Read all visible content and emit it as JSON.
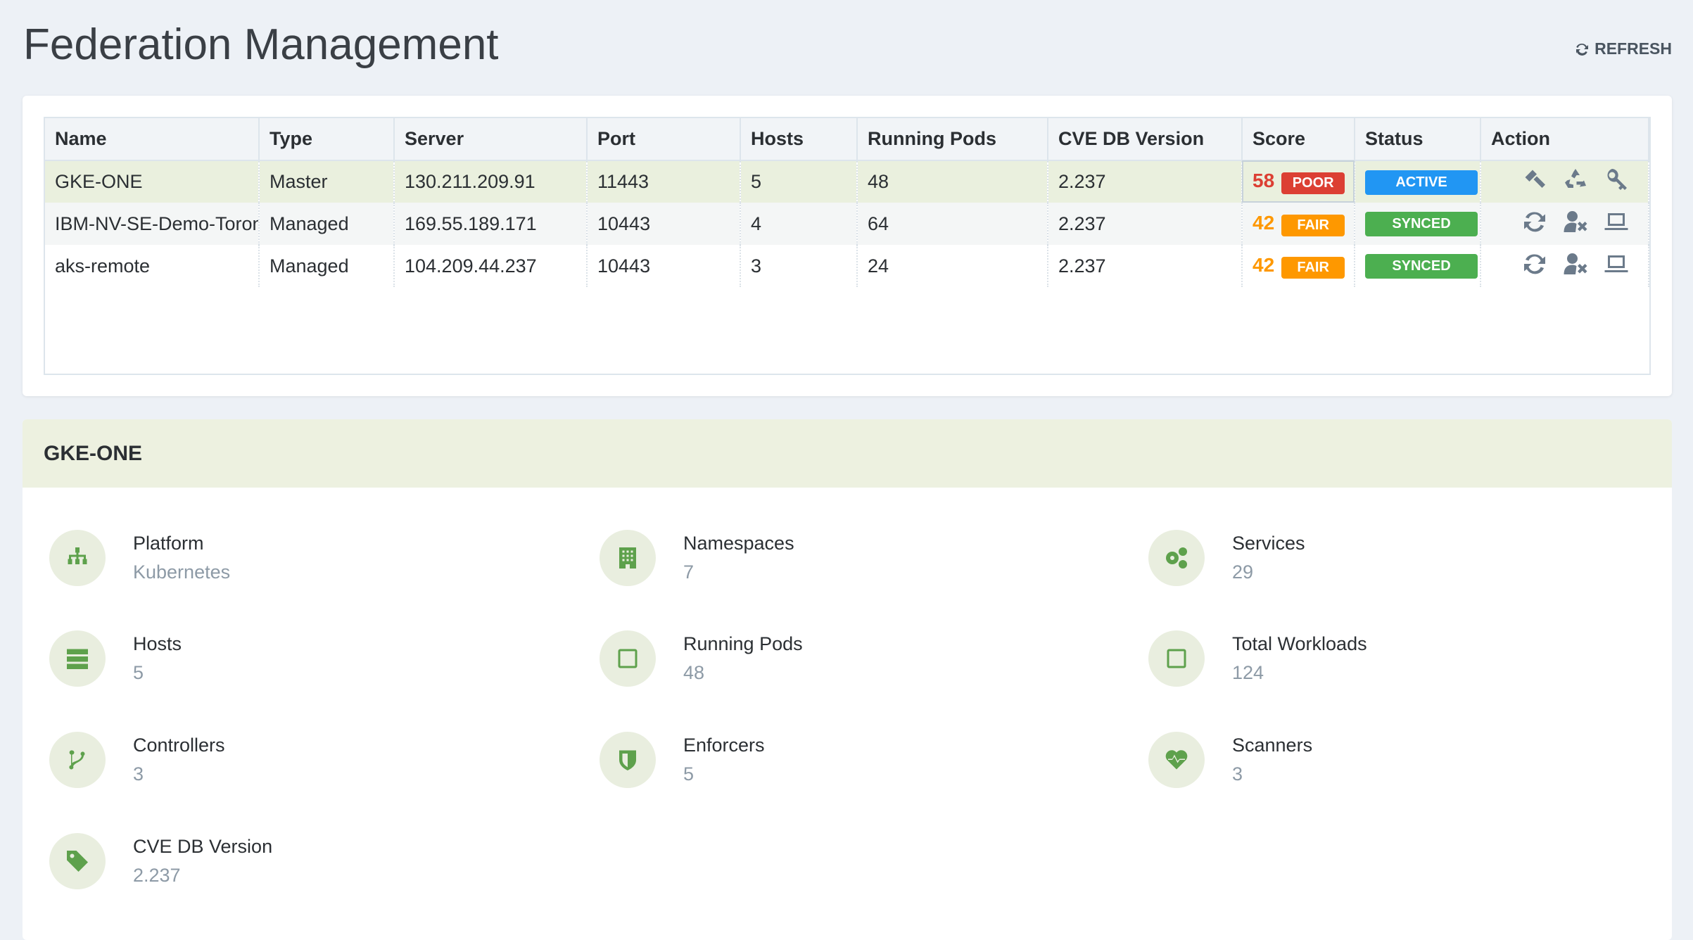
{
  "page": {
    "title": "Federation Management",
    "refresh_label": "REFRESH"
  },
  "table": {
    "columns": [
      "Name",
      "Type",
      "Server",
      "Port",
      "Hosts",
      "Running Pods",
      "CVE DB Version",
      "Score",
      "Status",
      "Action"
    ],
    "rows": [
      {
        "name": "GKE-ONE",
        "type": "Master",
        "server": "130.211.209.91",
        "port": "11443",
        "hosts": "5",
        "pods": "48",
        "cve": "2.237",
        "score": "58",
        "score_label": "POOR",
        "score_color": "#dc3f33",
        "status": "ACTIVE",
        "status_color": "#2196f3",
        "actions": [
          "gavel-icon",
          "recycle-icon",
          "key-icon"
        ]
      },
      {
        "name": "IBM-NV-SE-Demo-Toronto",
        "type": "Managed",
        "server": "169.55.189.171",
        "port": "10443",
        "hosts": "4",
        "pods": "64",
        "cve": "2.237",
        "score": "42",
        "score_label": "FAIR",
        "score_color": "#fe9800",
        "status": "SYNCED",
        "status_color": "#4caf50",
        "actions": [
          "sync-icon",
          "remove-user-icon",
          "laptop-icon"
        ]
      },
      {
        "name": "aks-remote",
        "type": "Managed",
        "server": "104.209.44.237",
        "port": "10443",
        "hosts": "3",
        "pods": "24",
        "cve": "2.237",
        "score": "42",
        "score_label": "FAIR",
        "score_color": "#fe9800",
        "status": "SYNCED",
        "status_color": "#4caf50",
        "actions": [
          "sync-icon",
          "remove-user-icon",
          "laptop-icon"
        ]
      }
    ]
  },
  "detail": {
    "title": "GKE-ONE",
    "items": [
      {
        "label": "Platform",
        "value": "Kubernetes",
        "icon": "sitemap-icon"
      },
      {
        "label": "Namespaces",
        "value": "7",
        "icon": "building-icon"
      },
      {
        "label": "Services",
        "value": "29",
        "icon": "gears-icon"
      },
      {
        "label": "Hosts",
        "value": "5",
        "icon": "server-icon"
      },
      {
        "label": "Running Pods",
        "value": "48",
        "icon": "square-icon"
      },
      {
        "label": "Total Workloads",
        "value": "124",
        "icon": "square-icon"
      },
      {
        "label": "Controllers",
        "value": "3",
        "icon": "branch-icon"
      },
      {
        "label": "Enforcers",
        "value": "5",
        "icon": "shield-icon"
      },
      {
        "label": "Scanners",
        "value": "3",
        "icon": "heartbeat-icon"
      },
      {
        "label": "CVE DB Version",
        "value": "2.237",
        "icon": "tag-icon"
      }
    ]
  }
}
